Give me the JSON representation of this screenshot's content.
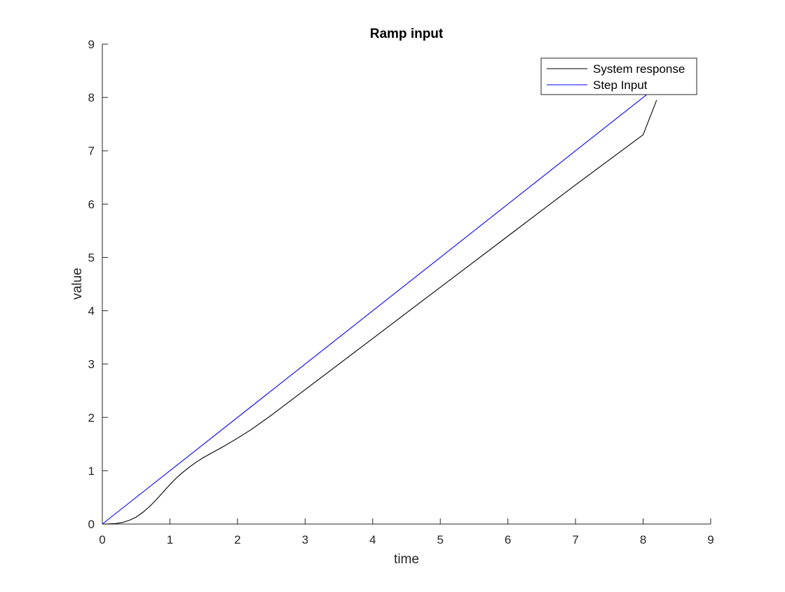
{
  "chart_data": {
    "type": "line",
    "title": "Ramp input",
    "xlabel": "time",
    "ylabel": "value",
    "xlim": [
      0,
      9
    ],
    "ylim": [
      0,
      9
    ],
    "xticks": [
      "0",
      "1",
      "2",
      "3",
      "4",
      "5",
      "6",
      "7",
      "8",
      "9"
    ],
    "yticks": [
      "0",
      "1",
      "2",
      "3",
      "4",
      "5",
      "6",
      "7",
      "8",
      "9"
    ],
    "grid": false,
    "legend_position": "top-right",
    "series": [
      {
        "name": "System response",
        "color": "#000000",
        "x": [
          0,
          0.1,
          0.2,
          0.3,
          0.4,
          0.5,
          0.6,
          0.7,
          0.8,
          0.9,
          1.0,
          1.1,
          1.2,
          1.3,
          1.4,
          1.5,
          1.6,
          1.8,
          2.0,
          2.2,
          2.5,
          3.0,
          3.5,
          4.0,
          4.5,
          5.0,
          5.5,
          6.0,
          6.5,
          7.0,
          7.5,
          8.0,
          8.2
        ],
        "y": [
          0,
          0.002,
          0.01,
          0.03,
          0.07,
          0.13,
          0.22,
          0.33,
          0.46,
          0.6,
          0.74,
          0.87,
          0.98,
          1.08,
          1.17,
          1.25,
          1.32,
          1.46,
          1.61,
          1.77,
          2.04,
          2.52,
          3.0,
          3.48,
          3.96,
          4.44,
          4.92,
          5.4,
          5.88,
          6.36,
          6.83,
          7.3,
          7.95
        ]
      },
      {
        "name": "Step Input",
        "color": "#0000ff",
        "x": [
          0,
          8.2
        ],
        "y": [
          0,
          8.2
        ]
      }
    ]
  }
}
